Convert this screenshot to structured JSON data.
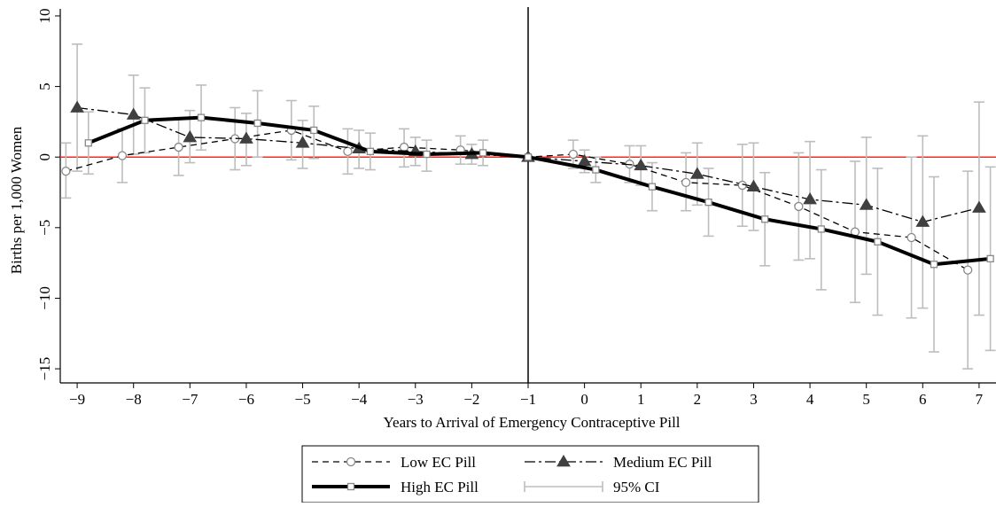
{
  "chart_data": {
    "type": "line",
    "xlabel": "Years to Arrival of Emergency Contraceptive Pill",
    "ylabel": "Births per 1,000 Women",
    "xlim": [
      -9.3,
      7.3
    ],
    "ylim": [
      -16,
      10.5
    ],
    "x_ticks": [
      -9,
      -8,
      -7,
      -6,
      -5,
      -4,
      -3,
      -2,
      -1,
      0,
      1,
      2,
      3,
      4,
      5,
      6,
      7
    ],
    "y_ticks": [
      10,
      5,
      0,
      -5,
      -10,
      -15
    ],
    "reference_lines": {
      "horizontal_y": 0,
      "horizontal_color": "#e8312a",
      "vertical_x": -1,
      "vertical_color": "#000000"
    },
    "grid": false,
    "legend_position": "bottom",
    "series": [
      {
        "name": "Low EC Pill",
        "style": "dashed",
        "marker": "hollow-circle",
        "color": "#000000",
        "x": [
          -9.2,
          -8.2,
          -7.2,
          -6.2,
          -5.2,
          -4.2,
          -3.2,
          -2.2,
          -1,
          -0.2,
          0.8,
          1.8,
          2.8,
          3.8,
          4.8,
          5.8,
          6.8
        ],
        "values": [
          -1.0,
          0.1,
          0.7,
          1.3,
          1.9,
          0.4,
          0.7,
          0.5,
          0,
          0.2,
          -0.5,
          -1.8,
          -2.0,
          -3.5,
          -5.3,
          -5.7,
          -8.0
        ],
        "ci_low": [
          -2.9,
          -1.8,
          -1.3,
          -0.9,
          -0.2,
          -1.2,
          -0.7,
          -0.5,
          0,
          -0.8,
          -1.8,
          -3.8,
          -4.9,
          -7.3,
          -10.3,
          -11.4,
          -15.0
        ],
        "ci_high": [
          1.0,
          2.0,
          2.8,
          3.5,
          4.0,
          2.0,
          2.0,
          1.5,
          0,
          1.2,
          0.8,
          0.3,
          0.9,
          0.3,
          -0.3,
          0.0,
          -1.0
        ]
      },
      {
        "name": "Medium EC Pill",
        "style": "dash-dot",
        "marker": "filled-triangle",
        "color": "#404040",
        "x": [
          -9,
          -8,
          -7,
          -6,
          -5,
          -4,
          -3,
          -2,
          -1,
          0,
          1,
          2,
          3,
          4,
          5,
          6,
          7
        ],
        "values": [
          3.5,
          3.0,
          1.4,
          1.3,
          1.0,
          0.6,
          0.4,
          0.2,
          0,
          -0.3,
          -0.6,
          -1.2,
          -2.1,
          -3.0,
          -3.4,
          -4.6,
          -3.6
        ],
        "ci_low": [
          -1.0,
          0.2,
          -0.4,
          -0.6,
          -0.8,
          -0.8,
          -0.6,
          -0.5,
          0,
          -1.1,
          -2.0,
          -3.4,
          -5.2,
          -7.2,
          -8.3,
          -10.7,
          -11.2
        ],
        "ci_high": [
          8.0,
          5.8,
          3.3,
          3.1,
          2.6,
          1.9,
          1.4,
          0.9,
          0,
          0.5,
          0.8,
          1.0,
          1.0,
          1.1,
          1.4,
          1.5,
          3.9
        ]
      },
      {
        "name": "High EC Pill",
        "style": "solid-thick",
        "marker": "hollow-square",
        "color": "#000000",
        "x": [
          -8.8,
          -7.8,
          -6.8,
          -5.8,
          -4.8,
          -3.8,
          -2.8,
          -1.8,
          -1,
          0.2,
          1.2,
          2.2,
          3.2,
          4.2,
          5.2,
          6.2,
          7.2
        ],
        "values": [
          1.0,
          2.6,
          2.8,
          2.4,
          1.9,
          0.4,
          0.2,
          0.3,
          0,
          -0.9,
          -2.1,
          -3.2,
          -4.4,
          -5.1,
          -6.0,
          -7.6,
          -7.2
        ],
        "ci_low": [
          -1.2,
          0.3,
          0.5,
          0.0,
          -0.1,
          -0.9,
          -1.0,
          -0.6,
          0,
          -1.8,
          -3.8,
          -5.6,
          -7.7,
          -9.4,
          -11.2,
          -13.8,
          -13.7
        ],
        "ci_high": [
          3.2,
          4.9,
          5.1,
          4.7,
          3.6,
          1.7,
          1.2,
          1.2,
          0,
          0.0,
          -0.4,
          -0.8,
          -1.1,
          -0.9,
          -0.8,
          -1.4,
          -0.7
        ]
      }
    ],
    "ci_color": "#bdbdbd",
    "legend": [
      {
        "label": "Low EC Pill",
        "key": "low"
      },
      {
        "label": "Medium EC Pill",
        "key": "medium"
      },
      {
        "label": "High EC Pill",
        "key": "high"
      },
      {
        "label": "95% CI",
        "key": "ci"
      }
    ]
  }
}
